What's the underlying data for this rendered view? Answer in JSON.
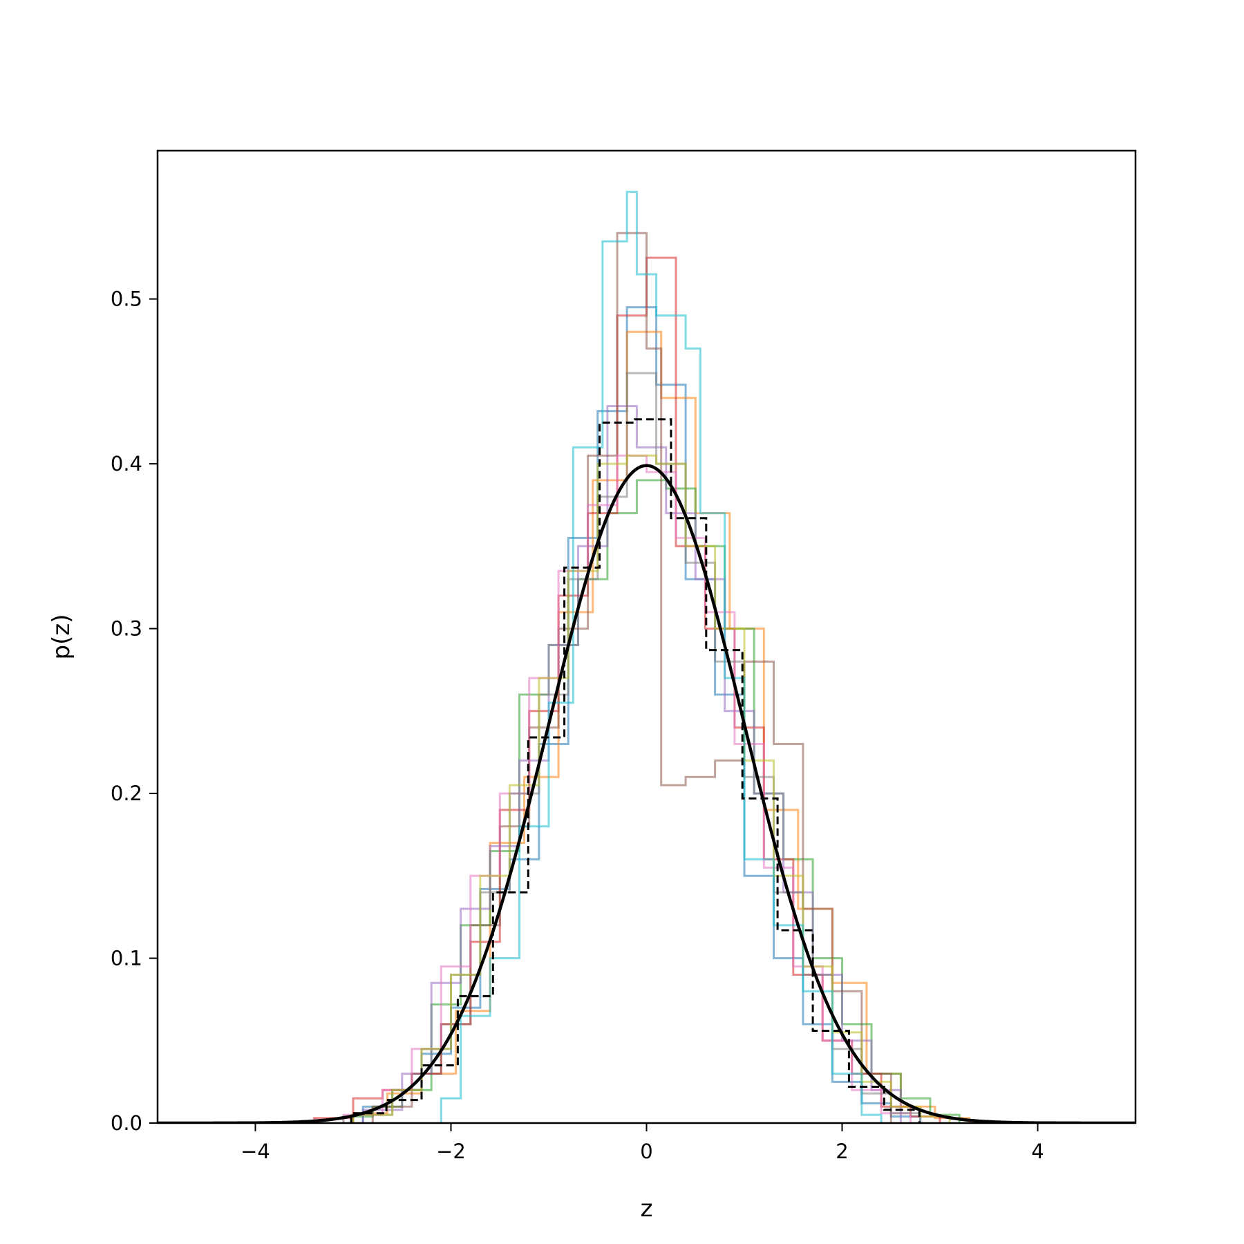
{
  "chart_data": {
    "type": "line",
    "title": "",
    "xlabel": "z",
    "ylabel": "p(z)",
    "xlim": [
      -5,
      5
    ],
    "ylim": [
      0,
      0.59
    ],
    "x_ticks": [
      -4,
      -2,
      0,
      2,
      4
    ],
    "x_tick_labels": [
      "−4",
      "−2",
      "0",
      "2",
      "4"
    ],
    "y_ticks": [
      0.0,
      0.1,
      0.2,
      0.3,
      0.4,
      0.5
    ],
    "y_tick_labels": [
      "0.0",
      "0.1",
      "0.2",
      "0.3",
      "0.4",
      "0.5"
    ],
    "grid": false,
    "legend": "none",
    "reference_curve": {
      "description_type": "normal pdf",
      "mean": 0,
      "std": 1,
      "color": "#000000"
    },
    "dashed_histogram": {
      "color": "#000000",
      "bin_edges": [
        -3.02,
        -2.66,
        -2.3,
        -1.93,
        -1.57,
        -1.21,
        -0.84,
        -0.48,
        -0.12,
        0.25,
        0.61,
        0.98,
        1.34,
        1.7,
        2.07,
        2.43,
        2.79
      ],
      "values": [
        0.006,
        0.014,
        0.035,
        0.077,
        0.14,
        0.234,
        0.337,
        0.425,
        0.427,
        0.367,
        0.287,
        0.197,
        0.117,
        0.056,
        0.022,
        0.008
      ]
    },
    "series": [
      {
        "color": "#1f77b4",
        "bin_edges": [
          -2.9,
          -2.6,
          -2.3,
          -2.0,
          -1.7,
          -1.4,
          -1.1,
          -0.8,
          -0.5,
          -0.2,
          0.1,
          0.4,
          0.7,
          1.0,
          1.3,
          1.6,
          1.9,
          2.2,
          2.5,
          2.8
        ],
        "values": [
          0.01,
          0.02,
          0.042,
          0.07,
          0.142,
          0.16,
          0.23,
          0.355,
          0.432,
          0.495,
          0.448,
          0.33,
          0.26,
          0.15,
          0.1,
          0.06,
          0.025,
          0.012,
          0.004
        ]
      },
      {
        "color": "#ff7f0e",
        "bin_edges": [
          -3.0,
          -2.65,
          -2.3,
          -1.95,
          -1.6,
          -1.25,
          -0.9,
          -0.55,
          -0.2,
          0.15,
          0.5,
          0.85,
          1.2,
          1.55,
          1.9,
          2.25,
          2.6,
          2.95,
          3.3
        ],
        "values": [
          0.006,
          0.018,
          0.03,
          0.068,
          0.17,
          0.21,
          0.31,
          0.39,
          0.48,
          0.44,
          0.37,
          0.3,
          0.19,
          0.13,
          0.085,
          0.03,
          0.01,
          0.003
        ]
      },
      {
        "color": "#2ca02c",
        "bin_edges": [
          -3.1,
          -2.8,
          -2.5,
          -2.2,
          -1.9,
          -1.6,
          -1.3,
          -1.0,
          -0.7,
          -0.4,
          -0.1,
          0.2,
          0.5,
          0.8,
          1.1,
          1.4,
          1.7,
          2.0,
          2.3,
          2.6,
          2.9,
          3.2
        ],
        "values": [
          0.004,
          0.01,
          0.02,
          0.072,
          0.12,
          0.165,
          0.26,
          0.29,
          0.33,
          0.37,
          0.39,
          0.385,
          0.35,
          0.3,
          0.2,
          0.16,
          0.1,
          0.06,
          0.03,
          0.015,
          0.005
        ]
      },
      {
        "color": "#d62728",
        "bin_edges": [
          -3.4,
          -3.0,
          -2.7,
          -2.4,
          -2.1,
          -1.8,
          -1.5,
          -1.2,
          -0.9,
          -0.6,
          -0.3,
          0.0,
          0.3,
          0.6,
          0.9,
          1.2,
          1.5,
          1.8,
          2.1,
          2.4,
          2.7,
          3.0
        ],
        "values": [
          0.003,
          0.015,
          0.02,
          0.03,
          0.06,
          0.11,
          0.19,
          0.25,
          0.32,
          0.37,
          0.49,
          0.525,
          0.35,
          0.3,
          0.24,
          0.16,
          0.09,
          0.05,
          0.03,
          0.01,
          0.004
        ]
      },
      {
        "color": "#9467bd",
        "bin_edges": [
          -2.9,
          -2.5,
          -2.2,
          -1.9,
          -1.6,
          -1.3,
          -1.0,
          -0.7,
          -0.4,
          -0.1,
          0.2,
          0.5,
          0.8,
          1.1,
          1.4,
          1.7,
          2.0,
          2.3,
          2.6
        ],
        "values": [
          0.008,
          0.03,
          0.085,
          0.13,
          0.168,
          0.22,
          0.29,
          0.35,
          0.435,
          0.41,
          0.37,
          0.33,
          0.25,
          0.2,
          0.14,
          0.09,
          0.05,
          0.02
        ]
      },
      {
        "color": "#8c564b",
        "bin_edges": [
          -2.8,
          -2.4,
          -2.1,
          -1.8,
          -1.5,
          -1.2,
          -0.9,
          -0.6,
          -0.3,
          0.0,
          0.15,
          0.4,
          0.7,
          1.0,
          1.3,
          1.6,
          1.9,
          2.2,
          2.5
        ],
        "values": [
          0.01,
          0.03,
          0.06,
          0.12,
          0.18,
          0.24,
          0.3,
          0.405,
          0.54,
          0.47,
          0.205,
          0.21,
          0.22,
          0.28,
          0.23,
          0.13,
          0.08,
          0.03
        ]
      },
      {
        "color": "#e377c2",
        "bin_edges": [
          -3.1,
          -2.7,
          -2.4,
          -2.1,
          -1.8,
          -1.5,
          -1.2,
          -0.9,
          -0.6,
          -0.3,
          0.0,
          0.3,
          0.6,
          0.9,
          1.2,
          1.5,
          1.8,
          2.1,
          2.4,
          2.7
        ],
        "values": [
          0.005,
          0.02,
          0.045,
          0.095,
          0.15,
          0.2,
          0.27,
          0.335,
          0.375,
          0.405,
          0.395,
          0.355,
          0.31,
          0.23,
          0.155,
          0.095,
          0.05,
          0.02,
          0.006
        ]
      },
      {
        "color": "#7f7f7f",
        "bin_edges": [
          -3.0,
          -2.6,
          -2.3,
          -2.0,
          -1.7,
          -1.4,
          -1.1,
          -0.8,
          -0.5,
          -0.2,
          0.1,
          0.4,
          0.7,
          1.0,
          1.3,
          1.6,
          1.9,
          2.2,
          2.5,
          2.8
        ],
        "values": [
          0.005,
          0.02,
          0.045,
          0.09,
          0.14,
          0.2,
          0.26,
          0.33,
          0.38,
          0.455,
          0.4,
          0.34,
          0.28,
          0.21,
          0.14,
          0.09,
          0.045,
          0.018,
          0.006
        ]
      },
      {
        "color": "#bcbd22",
        "bin_edges": [
          -3.0,
          -2.6,
          -2.3,
          -2.0,
          -1.7,
          -1.4,
          -1.1,
          -0.8,
          -0.5,
          -0.2,
          0.1,
          0.4,
          0.7,
          1.0,
          1.3,
          1.6,
          1.9,
          2.2,
          2.5,
          2.8,
          3.1
        ],
        "values": [
          0.005,
          0.02,
          0.045,
          0.09,
          0.15,
          0.205,
          0.27,
          0.335,
          0.4,
          0.405,
          0.4,
          0.35,
          0.3,
          0.22,
          0.15,
          0.095,
          0.055,
          0.025,
          0.01,
          0.004
        ]
      },
      {
        "color": "#17becf",
        "bin_edges": [
          -2.1,
          -1.9,
          -1.6,
          -1.3,
          -1.0,
          -0.75,
          -0.45,
          -0.2,
          -0.1,
          0.1,
          0.4,
          0.55,
          0.8,
          1.0,
          1.3,
          1.6,
          1.9,
          2.2,
          2.4
        ],
        "values": [
          0.015,
          0.065,
          0.1,
          0.18,
          0.255,
          0.41,
          0.535,
          0.565,
          0.515,
          0.49,
          0.47,
          0.37,
          0.27,
          0.16,
          0.12,
          0.08,
          0.03,
          0.005
        ]
      }
    ]
  }
}
